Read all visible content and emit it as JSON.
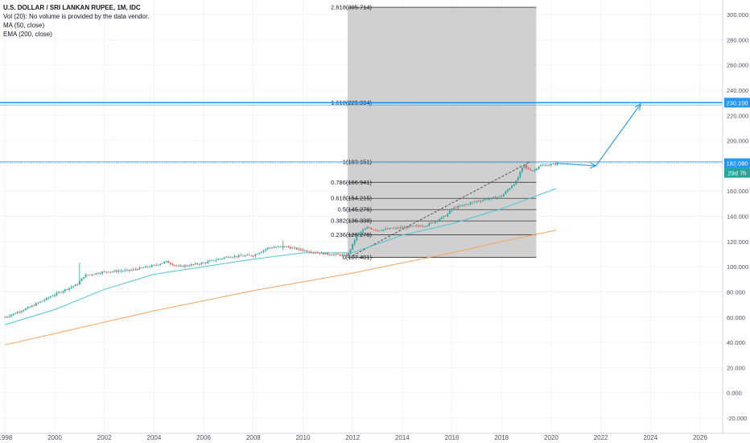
{
  "legend": {
    "title": "U.S. DOLLAR / SRI LANKAN RUPEE, 1M, IDC",
    "volume": "Vol (20): No volume is provided by the data vendor.",
    "ma": "MA (50, close)",
    "ema": "EMA (200, close)"
  },
  "price_axis": {
    "ticks": [
      "300.000",
      "280.000",
      "260.000",
      "240.000",
      "220.000",
      "200.000",
      "160.000",
      "140.000",
      "120.000",
      "100.000",
      "80.000",
      "60.000",
      "40.000",
      "20.000",
      "0.000",
      "-20.000"
    ],
    "last_price": "182.080",
    "countdown": "29d 7h",
    "level_label": "230.100"
  },
  "time_axis": {
    "ticks": [
      "1998",
      "2000",
      "2002",
      "2004",
      "2006",
      "2008",
      "2010",
      "2012",
      "2014",
      "2016",
      "2018",
      "2020",
      "2022",
      "2024",
      "2026"
    ]
  },
  "fibonacci": {
    "levels": [
      {
        "ratio": 2.618,
        "price": 305.714,
        "label": "2.618(305.714)"
      },
      {
        "ratio": 1.618,
        "price": 229.904,
        "label": "1.618(229.904)"
      },
      {
        "ratio": 1,
        "price": 183.151,
        "label": "1(183.151)"
      },
      {
        "ratio": 0.786,
        "price": 166.941,
        "label": "0.786(166.941)"
      },
      {
        "ratio": 0.618,
        "price": 154.215,
        "label": "0.618(154.215)"
      },
      {
        "ratio": 0.5,
        "price": 145.276,
        "label": "0.5(145.276)"
      },
      {
        "ratio": 0.382,
        "price": 136.338,
        "label": "0.382(136.338)"
      },
      {
        "ratio": 0.236,
        "price": 125.278,
        "label": "0.236(125.278)"
      },
      {
        "ratio": 0,
        "price": 107.401,
        "label": "0(107.401)"
      }
    ],
    "start_year": 2011.8,
    "end_year": 2019.4
  },
  "colors": {
    "up": "#26a69a",
    "down": "#ef5350",
    "ma": "#4fc3d6",
    "ema": "#f7a35c",
    "horizontal_line": "#2196f3",
    "fib_zone": "#c8c8c8",
    "price_label_bg": "#2196f3",
    "countdown_bg": "#26a69a"
  },
  "chart_data": {
    "type": "candlestick",
    "symbol": "USD/LKR",
    "interval": "1M",
    "ylim": [
      -30,
      310
    ],
    "xlim": [
      1998,
      2027
    ],
    "grid": true,
    "price_approx": {
      "x": [
        1998,
        1999,
        2000,
        2000.9,
        2001.2,
        2002,
        2003,
        2004,
        2004.5,
        2005,
        2006,
        2007,
        2008,
        2008.6,
        2009.3,
        2010,
        2011,
        2011.8,
        2012.2,
        2012.6,
        2013,
        2014,
        2015,
        2015.8,
        2016,
        2017,
        2018,
        2018.6,
        2018.9,
        2019,
        2019.3,
        2019.5,
        2020,
        2020.3
      ],
      "y": [
        60,
        68,
        78,
        86,
        93,
        96,
        97,
        101,
        104,
        100,
        103,
        108,
        109,
        115,
        116,
        113,
        110,
        109,
        126,
        131,
        129,
        131,
        133,
        141,
        146,
        152,
        156,
        168,
        181,
        178,
        176,
        180,
        181,
        182
      ]
    },
    "ma_50": {
      "x": [
        1998,
        2000,
        2002,
        2004,
        2006,
        2008,
        2010,
        2012,
        2014,
        2016,
        2018,
        2020.2
      ],
      "y": [
        54,
        66,
        82,
        94,
        100,
        106,
        111,
        111,
        125,
        134,
        146,
        162
      ]
    },
    "ema_200": {
      "x": [
        1998,
        2000,
        2002,
        2004,
        2006,
        2008,
        2010,
        2012,
        2014,
        2016,
        2018,
        2020.2
      ],
      "y": [
        38,
        47,
        56,
        65,
        73,
        81,
        88,
        95,
        103,
        111,
        120,
        129
      ]
    },
    "horizontal_level": 230.1,
    "projection": {
      "x": [
        2020.2,
        2021.8,
        2023.6
      ],
      "y": [
        182,
        180,
        229
      ]
    }
  }
}
